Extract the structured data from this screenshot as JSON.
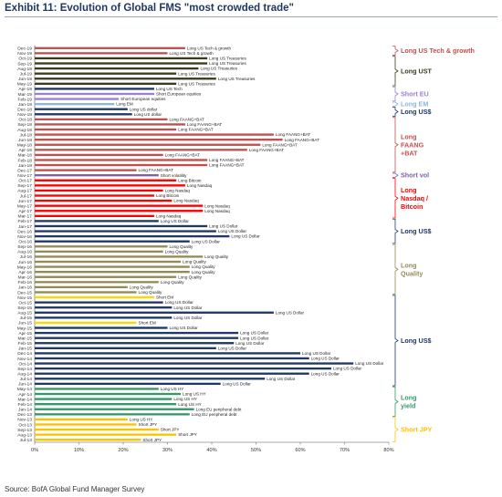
{
  "page": {
    "title": "Exhibit 11: Evolution of Global FMS \"most crowded trade\"",
    "source": "Source: BofA Global Fund Manager Survey"
  },
  "chart_data": {
    "type": "bar",
    "orientation": "horizontal",
    "xlim": [
      0,
      80
    ],
    "x_ticks": [
      "0%",
      "10%",
      "20%",
      "30%",
      "40%",
      "50%",
      "60%",
      "70%",
      "80%"
    ],
    "grid": false,
    "legend": "right-side group brackets",
    "bars": [
      {
        "date": "Dec-19",
        "value": 34,
        "label": "Long US Tech & growth",
        "color": "#c0504d"
      },
      {
        "date": "Nov-19",
        "value": 30,
        "label": "Long US Tech & growth",
        "color": "#c0504d"
      },
      {
        "date": "Oct-19",
        "value": 39,
        "label": "Long US Treasuries",
        "color": "#3b3b1e"
      },
      {
        "date": "Sep-19",
        "value": 39,
        "label": "Long US Treasuries",
        "color": "#3b3b1e"
      },
      {
        "date": "Aug-19",
        "value": 37,
        "label": "Long US Treasuries",
        "color": "#3b3b1e"
      },
      {
        "date": "Jul-19",
        "value": 32,
        "label": "Long US Treasuries",
        "color": "#3b3b1e"
      },
      {
        "date": "Jun-19",
        "value": 41,
        "label": "Long US Treasuries",
        "color": "#3b3b1e"
      },
      {
        "date": "May-19",
        "value": 32,
        "label": "Long US Treasuries",
        "color": "#3b3b1e"
      },
      {
        "date": "Apr-19",
        "value": 27,
        "label": "Long US Tech",
        "color": "#1f3864"
      },
      {
        "date": "Mar-19",
        "value": 27,
        "label": "Short European equities",
        "color": "#9b7fd0"
      },
      {
        "date": "Feb-19",
        "value": 19,
        "label": "Short European equities",
        "color": "#9b7fd0"
      },
      {
        "date": "Jan-19",
        "value": 18,
        "label": "Long EM",
        "color": "#8eb4e3"
      },
      {
        "date": "Dec-18",
        "value": 21,
        "label": "Long US dollar",
        "color": "#1f3864"
      },
      {
        "date": "Nov-18",
        "value": 22,
        "label": "Long US dollar",
        "color": "#1f3864"
      },
      {
        "date": "Oct-18",
        "value": 30,
        "label": "Long FAANG+BAT",
        "color": "#c0504d"
      },
      {
        "date": "Sep-18",
        "value": 34,
        "label": "Long FAANG+BAT",
        "color": "#c0504d"
      },
      {
        "date": "Aug-18",
        "value": 32,
        "label": "Long FAANG+BAT",
        "color": "#c0504d"
      },
      {
        "date": "Jul-18",
        "value": 54,
        "label": "Long FAANG+BAT",
        "color": "#c0504d"
      },
      {
        "date": "Jun-18",
        "value": 56,
        "label": "Long FAANG+BAT",
        "color": "#c0504d"
      },
      {
        "date": "May-18",
        "value": 51,
        "label": "Long FAANG+BAT",
        "color": "#c0504d"
      },
      {
        "date": "Apr-18",
        "value": 48,
        "label": "Long FAANG+BAT",
        "color": "#c0504d"
      },
      {
        "date": "Mar-18",
        "value": 29,
        "label": "Long FAANG+BAT",
        "color": "#c0504d"
      },
      {
        "date": "Feb-18",
        "value": 39,
        "label": "Long FAANG+BAT",
        "color": "#c0504d"
      },
      {
        "date": "Jan-18",
        "value": 39,
        "label": "Long FAANG+BAT",
        "color": "#c0504d"
      },
      {
        "date": "Dec-17",
        "value": 23,
        "label": "Long FAANG+BAT",
        "color": "#c0504d"
      },
      {
        "date": "Nov-17",
        "value": 28,
        "label": "Short volatility",
        "color": "#7f5fa8"
      },
      {
        "date": "Oct-17",
        "value": 32,
        "label": "Long Bitcoin",
        "color": "#ff0000"
      },
      {
        "date": "Sep-17",
        "value": 34,
        "label": "Long Nasdaq",
        "color": "#ff0000"
      },
      {
        "date": "Aug-17",
        "value": 29,
        "label": "Long Nasdaq",
        "color": "#ff0000"
      },
      {
        "date": "Jul-17",
        "value": 27,
        "label": "Long Bitcoin",
        "color": "#ff0000"
      },
      {
        "date": "Jun-17",
        "value": 31,
        "label": "Long Nasdaq",
        "color": "#ff0000"
      },
      {
        "date": "May-17",
        "value": 38,
        "label": "Long Nasdaq",
        "color": "#ff0000"
      },
      {
        "date": "Apr-17",
        "value": 38,
        "label": "Long Nasdaq",
        "color": "#ff0000"
      },
      {
        "date": "Mar-17",
        "value": 27,
        "label": "Long Nasdaq",
        "color": "#ff0000"
      },
      {
        "date": "Feb-17",
        "value": 28,
        "label": "Long US Dollar",
        "color": "#1f3864"
      },
      {
        "date": "Jan-17",
        "value": 39,
        "label": "Long US Dollar",
        "color": "#1f3864"
      },
      {
        "date": "Dec-16",
        "value": 41,
        "label": "Long US Dollar",
        "color": "#1f3864"
      },
      {
        "date": "Nov-16",
        "value": 44,
        "label": "Long US Dollar",
        "color": "#1f3864"
      },
      {
        "date": "Oct-16",
        "value": 35,
        "label": "Long US Dollar",
        "color": "#1f3864"
      },
      {
        "date": "Sep-16",
        "value": 30,
        "label": "Long Quality",
        "color": "#948a54"
      },
      {
        "date": "Aug-16",
        "value": 29,
        "label": "Long Quality",
        "color": "#948a54"
      },
      {
        "date": "Jul-16",
        "value": 38,
        "label": "Long Quality",
        "color": "#948a54"
      },
      {
        "date": "Jun-16",
        "value": 33,
        "label": "Long Quality",
        "color": "#948a54"
      },
      {
        "date": "May-16",
        "value": 35,
        "label": "Long Quality",
        "color": "#948a54"
      },
      {
        "date": "Apr-16",
        "value": 35,
        "label": "Long Quality",
        "color": "#948a54"
      },
      {
        "date": "Mar-16",
        "value": 32,
        "label": "Long Quality",
        "color": "#948a54"
      },
      {
        "date": "Feb-16",
        "value": 28,
        "label": "Long Quality",
        "color": "#948a54"
      },
      {
        "date": "Jan-16",
        "value": 21,
        "label": "Long Quality",
        "color": "#948a54"
      },
      {
        "date": "Dec-15",
        "value": 23,
        "label": "Long Quality",
        "color": "#948a54"
      },
      {
        "date": "Nov-15",
        "value": 27,
        "label": "Short EM",
        "color": "#ffd700"
      },
      {
        "date": "Oct-15",
        "value": 29,
        "label": "Long US Dollar",
        "color": "#1f3864"
      },
      {
        "date": "Sep-15",
        "value": 31,
        "label": "Long US Dollar",
        "color": "#1f3864"
      },
      {
        "date": "Aug-15",
        "value": 54,
        "label": "Long US Dollar",
        "color": "#1f3864"
      },
      {
        "date": "Jul-15",
        "value": 31,
        "label": "Long US Dollar",
        "color": "#1f3864"
      },
      {
        "date": "Jun-15",
        "value": 23,
        "label": "Short EM",
        "color": "#ffd700"
      },
      {
        "date": "May-15",
        "value": 30,
        "label": "Long US Dollar",
        "color": "#1f3864"
      },
      {
        "date": "Apr-15",
        "value": 46,
        "label": "Long US Dollar",
        "color": "#1f3864"
      },
      {
        "date": "Mar-15",
        "value": 46,
        "label": "Long US Dollar",
        "color": "#1f3864"
      },
      {
        "date": "Feb-15",
        "value": 45,
        "label": "Long US Dollar",
        "color": "#1f3864"
      },
      {
        "date": "Jan-15",
        "value": 41,
        "label": "Long US Dollar",
        "color": "#1f3864"
      },
      {
        "date": "Dec-14",
        "value": 60,
        "label": "Long US Dollar",
        "color": "#1f3864"
      },
      {
        "date": "Nov-14",
        "value": 62,
        "label": "Long US Dollar",
        "color": "#1f3864"
      },
      {
        "date": "Oct-14",
        "value": 72,
        "label": "Long US Dollar",
        "color": "#1f3864"
      },
      {
        "date": "Sep-14",
        "value": 67,
        "label": "Long US Dollar",
        "color": "#1f3864"
      },
      {
        "date": "Aug-14",
        "value": 62,
        "label": "Long US Dollar",
        "color": "#1f3864"
      },
      {
        "date": "Jul-14",
        "value": 52,
        "label": "Long US Dollar",
        "color": "#1f3864"
      },
      {
        "date": "Jun-14",
        "value": 42,
        "label": "Long US Dollar",
        "color": "#1f3864"
      },
      {
        "date": "May-14",
        "value": 28,
        "label": "Long US HY",
        "color": "#339966"
      },
      {
        "date": "Apr-14",
        "value": 33,
        "label": "Long US HY",
        "color": "#339966"
      },
      {
        "date": "Mar-14",
        "value": 31,
        "label": "Long US HY",
        "color": "#339966"
      },
      {
        "date": "Feb-14",
        "value": 32,
        "label": "Long US HY",
        "color": "#339966"
      },
      {
        "date": "Jan-14",
        "value": 36,
        "label": "Long EU peripheral debt",
        "color": "#339966"
      },
      {
        "date": "Dec-13",
        "value": 35,
        "label": "Long EU peripheral debt",
        "color": "#339966"
      },
      {
        "date": "Nov-13",
        "value": 21,
        "label": "Long US HY",
        "color": "#ffc000"
      },
      {
        "date": "Oct-13",
        "value": 23,
        "label": "Short JPY",
        "color": "#ffc000"
      },
      {
        "date": "Sep-13",
        "value": 28,
        "label": "Short JPY",
        "color": "#ffc000"
      },
      {
        "date": "Aug-13",
        "value": 32,
        "label": "Short JPY",
        "color": "#ffc000"
      },
      {
        "date": "Jul-13",
        "value": 24,
        "label": "Short JPY",
        "color": "#ffc000"
      }
    ],
    "groups": [
      {
        "label": "Long US Tech & growth",
        "from": 0,
        "to": 1,
        "color": "#c0504d"
      },
      {
        "label": "Long UST",
        "from": 2,
        "to": 7,
        "color": "#3b3b1e"
      },
      {
        "label": "Short EU",
        "from": 8,
        "to": 10,
        "color": "#9b7fd0"
      },
      {
        "label": "Long EM",
        "from": 11,
        "to": 11,
        "color": "#8eb4e3"
      },
      {
        "label": "Long US$",
        "from": 12,
        "to": 13,
        "color": "#1f3864"
      },
      {
        "label": "Long FAANG +BAT",
        "from": 14,
        "to": 24,
        "color": "#c0504d"
      },
      {
        "label": "Short vol",
        "from": 25,
        "to": 25,
        "color": "#7f5fa8"
      },
      {
        "label": "Long Nasdaq / Bitcoin",
        "from": 26,
        "to": 33,
        "color": "#ff0000"
      },
      {
        "label": "Long US$",
        "from": 34,
        "to": 38,
        "color": "#1f3864"
      },
      {
        "label": "Long Quality",
        "from": 39,
        "to": 48,
        "color": "#948a54"
      },
      {
        "label": "Long US$",
        "from": 49,
        "to": 66,
        "color": "#1f3864"
      },
      {
        "label": "Long yield",
        "from": 67,
        "to": 72,
        "color": "#339966"
      },
      {
        "label": "Short JPY",
        "from": 73,
        "to": 77,
        "color": "#ffc000"
      }
    ]
  }
}
